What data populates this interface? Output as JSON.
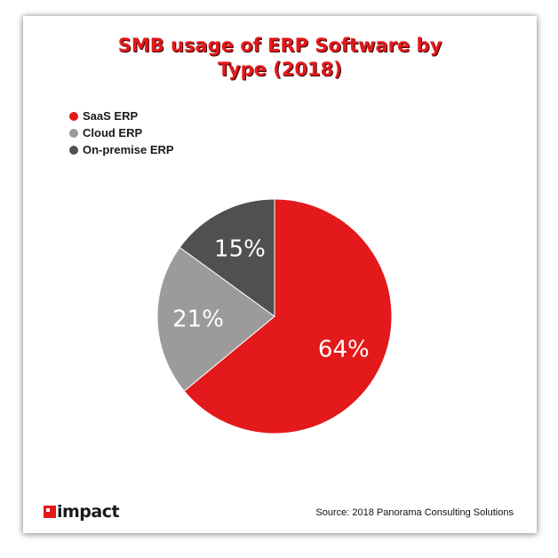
{
  "chart_data": {
    "type": "pie",
    "title_lines": [
      "SMB usage of ERP Software by",
      "Type (2018)"
    ],
    "slices": [
      {
        "label": "SaaS ERP",
        "value": 64,
        "display": "64%",
        "color": "#e3191b"
      },
      {
        "label": "Cloud ERP",
        "value": 21,
        "display": "21%",
        "color": "#9b9b9b"
      },
      {
        "label": "On-premise ERP",
        "value": 15,
        "display": "15%",
        "color": "#505050"
      }
    ],
    "start_angle_deg": 0,
    "direction": "clockwise",
    "legend_position": "top-left"
  },
  "branding": {
    "logo_text": "impact",
    "logo_color": "#e3191b"
  },
  "source": "Source: 2018 Panorama Consulting Solutions"
}
